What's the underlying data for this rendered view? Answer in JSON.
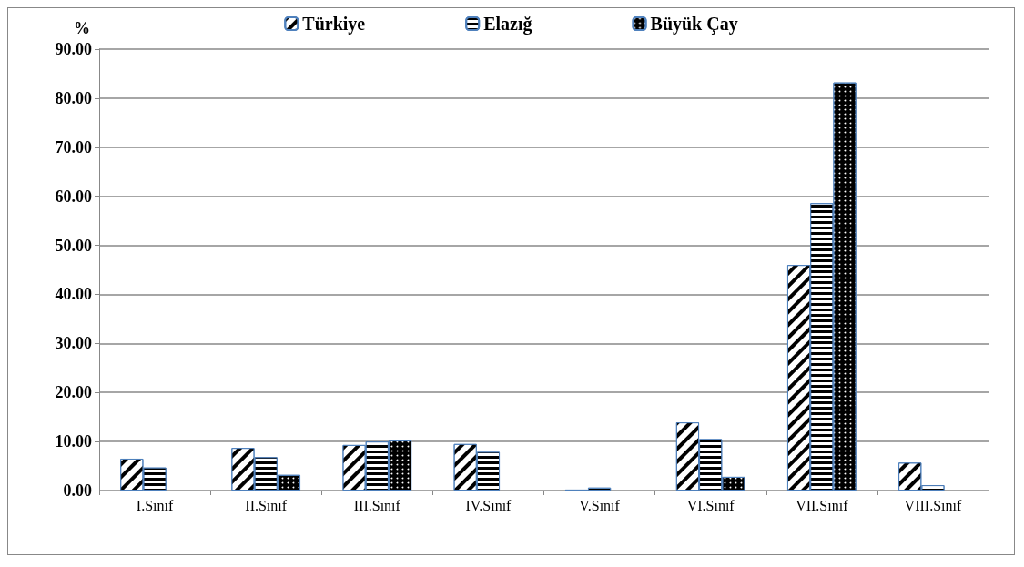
{
  "chart_data": {
    "type": "bar",
    "ylabel": "%",
    "categories": [
      "I.Sınıf",
      "II.Sınıf",
      "III.Sınıf",
      "IV.Sınıf",
      "V.Sınıf",
      "VI.Sınıf",
      "VII.Sınıf",
      "VIII.Sınıf"
    ],
    "series": [
      {
        "name": "Türkiye",
        "color": "#ffffff",
        "values": [
          6.5,
          8.7,
          9.3,
          9.5,
          0.2,
          13.9,
          46.0,
          5.7
        ]
      },
      {
        "name": "Elazığ",
        "color": "#ffffff",
        "values": [
          4.7,
          6.8,
          10.0,
          7.9,
          0.6,
          10.5,
          58.6,
          1.1
        ]
      },
      {
        "name": "Büyük Çay",
        "color": "#000000",
        "values": [
          null,
          3.2,
          10.2,
          null,
          null,
          2.8,
          83.2,
          null
        ]
      }
    ],
    "ylim": [
      0,
      90
    ],
    "yticks": [
      {
        "value": 0,
        "label": "0.00"
      },
      {
        "value": 10,
        "label": "10.00"
      },
      {
        "value": 20,
        "label": "20.00"
      },
      {
        "value": 30,
        "label": "30.00"
      },
      {
        "value": 40,
        "label": "40.00"
      },
      {
        "value": 50,
        "label": "50.00"
      },
      {
        "value": 60,
        "label": "60.00"
      },
      {
        "value": 70,
        "label": "70.00"
      },
      {
        "value": 80,
        "label": "80.00"
      },
      {
        "value": 90,
        "label": "90.00"
      }
    ],
    "grid": "y",
    "legend": "top"
  }
}
